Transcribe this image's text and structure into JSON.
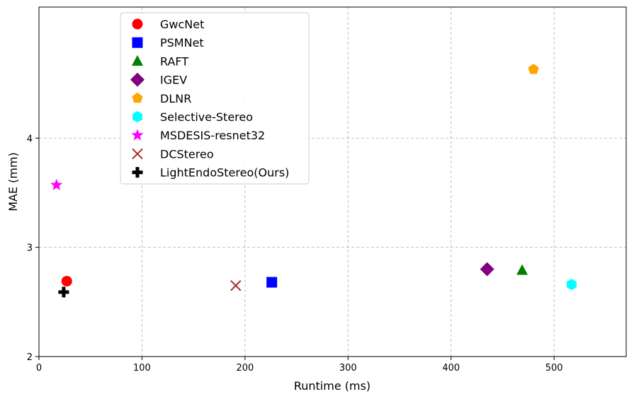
{
  "chart_data": {
    "type": "scatter",
    "xlabel": "Runtime (ms)",
    "ylabel": "MAE (mm)",
    "xlim": [
      0,
      570
    ],
    "ylim": [
      2,
      5.2
    ],
    "xticks": [
      0,
      100,
      200,
      300,
      400,
      500
    ],
    "yticks": [
      2,
      3,
      4
    ],
    "grid": true,
    "legend_position": "top-left",
    "series": [
      {
        "name": "GwcNet",
        "marker": "circle",
        "color": "#ff0000",
        "x": 27,
        "y": 2.69
      },
      {
        "name": "PSMNet",
        "marker": "square",
        "color": "#0000ff",
        "x": 226,
        "y": 2.68
      },
      {
        "name": "RAFT",
        "marker": "triangle",
        "color": "#008000",
        "x": 469,
        "y": 2.79
      },
      {
        "name": "IGEV",
        "marker": "diamond",
        "color": "#800080",
        "x": 435,
        "y": 2.8
      },
      {
        "name": "DLNR",
        "marker": "pentagon",
        "color": "#ffa500",
        "x": 480,
        "y": 4.63
      },
      {
        "name": "Selective-Stereo",
        "marker": "hexagon",
        "color": "#00ffff",
        "x": 517,
        "y": 2.66
      },
      {
        "name": "MSDESIS-resnet32",
        "marker": "star",
        "color": "#ff00ff",
        "x": 17,
        "y": 3.57
      },
      {
        "name": "DCStereo",
        "marker": "x",
        "color": "#a52a2a",
        "x": 191,
        "y": 2.65
      },
      {
        "name": "LightEndoStereo(Ours)",
        "marker": "plus",
        "color": "#000000",
        "x": 24,
        "y": 2.59
      }
    ]
  }
}
